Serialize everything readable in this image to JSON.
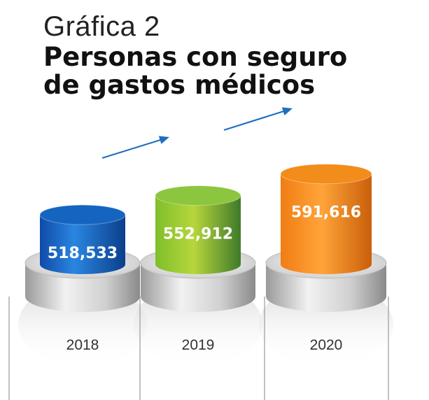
{
  "header": {
    "eyebrow": "Gráfica 2",
    "title_line1": "Personas con seguro",
    "title_line2": "de gastos médicos"
  },
  "chart_data": {
    "type": "bar",
    "title": "Gráfica 2 Personas con seguro de gastos médicos",
    "categories": [
      "2018",
      "2019",
      "2020"
    ],
    "values": [
      518533,
      552912,
      591616
    ],
    "value_labels": [
      "518,533",
      "552,912",
      "591,616"
    ],
    "xlabel": "",
    "ylabel": "",
    "ylim": [
      0,
      600000
    ],
    "grid": false,
    "legend": "none",
    "colors": [
      "#1565c0",
      "#8cc63f",
      "#f28c1a"
    ],
    "trend_arrows": true
  }
}
